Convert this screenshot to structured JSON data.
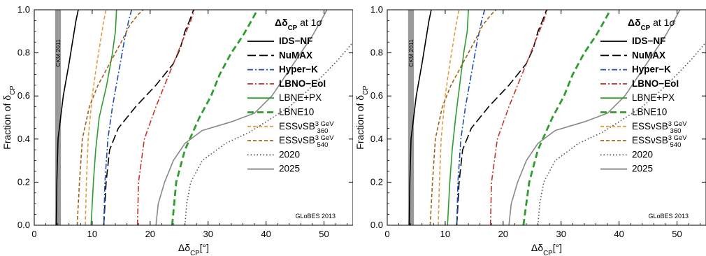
{
  "chart_data": [
    {
      "type": "line",
      "xlabel": "Δδ",
      "xlabel_sub": "CP",
      "xlabel_unit": "[°]",
      "ylabel": "Fraction of δ",
      "ylabel_sub": "CP",
      "xlim": [
        0,
        55
      ],
      "ylim": [
        0,
        1
      ],
      "x_ticks": [
        0,
        10,
        20,
        30,
        40,
        50
      ],
      "y_ticks": [
        "0.0",
        "0.2",
        "0.4",
        "0.6",
        "0.8",
        "1.0"
      ],
      "grid": false,
      "legend_title": "Δδ",
      "legend_title_sub": "CP",
      "legend_title_suffix": " at 1σ",
      "legend_position": "right",
      "band": {
        "label": "CKM 2011",
        "x": [
          3.6,
          4.6
        ],
        "color": "#999999"
      },
      "watermark": "GLoBES 2013",
      "series": [
        {
          "name": "IDS−NF",
          "color": "#000000",
          "dash": "solid",
          "bold": true,
          "points": [
            [
              3.8,
              0
            ],
            [
              3.9,
              0.2
            ],
            [
              4.1,
              0.4
            ],
            [
              5.0,
              0.6
            ],
            [
              6.0,
              0.75
            ],
            [
              6.6,
              0.85
            ],
            [
              7.2,
              0.95
            ],
            [
              7.6,
              1.0
            ]
          ]
        },
        {
          "name": "NuMAX",
          "color": "#000000",
          "dash": "longdash",
          "bold": true,
          "points": [
            [
              12.0,
              0
            ],
            [
              12.4,
              0.2
            ],
            [
              13.0,
              0.35
            ],
            [
              14.5,
              0.45
            ],
            [
              17.5,
              0.55
            ],
            [
              21.0,
              0.65
            ],
            [
              24.0,
              0.75
            ],
            [
              25.2,
              0.82
            ],
            [
              26.0,
              0.9
            ],
            [
              26.8,
              0.95
            ],
            [
              27.5,
              1.0
            ]
          ]
        },
        {
          "name": "Hyper−K",
          "color": "#1f4fb4",
          "dash": "dashdot",
          "bold": true,
          "points": [
            [
              12.0,
              0
            ],
            [
              12.2,
              0.2
            ],
            [
              12.7,
              0.4
            ],
            [
              13.5,
              0.55
            ],
            [
              14.5,
              0.7
            ],
            [
              15.5,
              0.85
            ],
            [
              16.3,
              0.95
            ],
            [
              16.8,
              1.0
            ]
          ]
        },
        {
          "name": "LBNO−EoI",
          "color": "#c0392b",
          "dash": "dashdot",
          "bold": true,
          "points": [
            [
              17.8,
              0
            ],
            [
              18.0,
              0.2
            ],
            [
              19.0,
              0.4
            ],
            [
              21.0,
              0.55
            ],
            [
              22.5,
              0.65
            ],
            [
              24.0,
              0.75
            ],
            [
              25.5,
              0.85
            ],
            [
              27.0,
              0.95
            ],
            [
              27.6,
              1.0
            ]
          ]
        },
        {
          "name": "LBNE+PX",
          "color": "#2e9e2e",
          "dash": "solid",
          "bold": false,
          "points": [
            [
              9.8,
              0
            ],
            [
              10.2,
              0.2
            ],
            [
              10.6,
              0.35
            ],
            [
              11.2,
              0.5
            ],
            [
              12.5,
              0.65
            ],
            [
              13.5,
              0.8
            ],
            [
              14.0,
              0.9
            ],
            [
              14.2,
              1.0
            ]
          ]
        },
        {
          "name": "LBNE10",
          "color": "#2e9e2e",
          "dash": "thickdash",
          "bold": false,
          "points": [
            [
              23.8,
              0
            ],
            [
              24.5,
              0.2
            ],
            [
              26.0,
              0.35
            ],
            [
              28.5,
              0.5
            ],
            [
              30.5,
              0.6
            ],
            [
              32.0,
              0.7
            ],
            [
              34.0,
              0.8
            ],
            [
              36.0,
              0.88
            ],
            [
              37.5,
              0.95
            ],
            [
              38.5,
              1.0
            ]
          ]
        },
        {
          "name": "ESSνSB",
          "name_sup": "3 GeV",
          "name_sub": "360",
          "color": "#e0a040",
          "dash": "dash",
          "bold": false,
          "points": [
            [
              8.8,
              0
            ],
            [
              9.0,
              0.2
            ],
            [
              9.3,
              0.4
            ],
            [
              10.0,
              0.6
            ],
            [
              10.8,
              0.75
            ],
            [
              11.4,
              0.85
            ],
            [
              12.0,
              0.95
            ],
            [
              12.4,
              1.0
            ]
          ]
        },
        {
          "name": "ESSνSB",
          "name_sup": "3 GeV",
          "name_sub": "540",
          "color": "#a0621c",
          "dash": "dash",
          "bold": false,
          "points": [
            [
              7.4,
              0
            ],
            [
              7.8,
              0.2
            ],
            [
              8.3,
              0.4
            ],
            [
              9.5,
              0.55
            ],
            [
              11.0,
              0.65
            ],
            [
              13.0,
              0.75
            ],
            [
              15.0,
              0.85
            ],
            [
              16.5,
              0.93
            ],
            [
              18.0,
              0.98
            ],
            [
              18.8,
              1.0
            ]
          ]
        },
        {
          "name": "2020",
          "color": "#555555",
          "dash": "dot",
          "bold": false,
          "points": [
            [
              26.0,
              0
            ],
            [
              26.3,
              0.1
            ],
            [
              27.0,
              0.2
            ],
            [
              29.0,
              0.3
            ],
            [
              33.0,
              0.38
            ],
            [
              37.0,
              0.43
            ],
            [
              40.0,
              0.48
            ],
            [
              44.0,
              0.55
            ],
            [
              47.0,
              0.62
            ],
            [
              50.0,
              0.7
            ],
            [
              52.5,
              0.77
            ],
            [
              55.0,
              0.85
            ]
          ]
        },
        {
          "name": "2025",
          "color": "#888888",
          "dash": "solid",
          "bold": false,
          "points": [
            [
              21.0,
              0
            ],
            [
              21.4,
              0.1
            ],
            [
              22.5,
              0.2
            ],
            [
              24.0,
              0.3
            ],
            [
              26.0,
              0.38
            ],
            [
              29.0,
              0.44
            ],
            [
              34.0,
              0.48
            ],
            [
              38.0,
              0.52
            ],
            [
              41.0,
              0.6
            ],
            [
              43.5,
              0.7
            ],
            [
              46.0,
              0.8
            ],
            [
              48.0,
              0.88
            ],
            [
              49.5,
              0.95
            ],
            [
              50.5,
              1.0
            ]
          ]
        }
      ]
    },
    {
      "type": "line",
      "xlabel": "Δδ",
      "xlabel_sub": "CP",
      "xlabel_unit": "[°]",
      "ylabel": "Fraction of δ",
      "ylabel_sub": "CP",
      "xlim": [
        0,
        55
      ],
      "ylim": [
        0,
        1
      ],
      "x_ticks": [
        0,
        10,
        20,
        30,
        40,
        50
      ],
      "y_ticks": [
        "0.0",
        "0.2",
        "0.4",
        "0.6",
        "0.8",
        "1.0"
      ],
      "grid": false,
      "legend_title": "Δδ",
      "legend_title_sub": "CP",
      "legend_title_suffix": " at 1σ",
      "legend_position": "right",
      "band": {
        "label": "CKM 2011",
        "x": [
          3.6,
          4.6
        ],
        "color": "#999999"
      },
      "watermark": "GLoBES 2013",
      "series": [
        {
          "name": "IDS−NF",
          "color": "#000000",
          "dash": "solid",
          "bold": true,
          "points": [
            [
              3.8,
              0
            ],
            [
              3.9,
              0.2
            ],
            [
              4.1,
              0.4
            ],
            [
              5.0,
              0.6
            ],
            [
              6.0,
              0.75
            ],
            [
              6.6,
              0.85
            ],
            [
              7.2,
              0.95
            ],
            [
              7.6,
              1.0
            ]
          ]
        },
        {
          "name": "NuMAX",
          "color": "#000000",
          "dash": "longdash",
          "bold": true,
          "points": [
            [
              12.0,
              0
            ],
            [
              12.4,
              0.2
            ],
            [
              13.0,
              0.35
            ],
            [
              14.5,
              0.45
            ],
            [
              17.5,
              0.55
            ],
            [
              21.0,
              0.65
            ],
            [
              24.0,
              0.75
            ],
            [
              25.2,
              0.82
            ],
            [
              26.0,
              0.9
            ],
            [
              26.8,
              0.95
            ],
            [
              27.5,
              1.0
            ]
          ]
        },
        {
          "name": "Hyper−K",
          "color": "#1f4fb4",
          "dash": "dashdot",
          "bold": true,
          "points": [
            [
              12.0,
              0
            ],
            [
              12.2,
              0.2
            ],
            [
              12.7,
              0.4
            ],
            [
              13.5,
              0.55
            ],
            [
              14.5,
              0.7
            ],
            [
              15.5,
              0.85
            ],
            [
              16.3,
              0.95
            ],
            [
              16.8,
              1.0
            ]
          ]
        },
        {
          "name": "LBNO−EoI",
          "color": "#c0392b",
          "dash": "dashdot",
          "bold": true,
          "points": [
            [
              17.8,
              0
            ],
            [
              18.0,
              0.2
            ],
            [
              19.0,
              0.4
            ],
            [
              21.0,
              0.55
            ],
            [
              22.5,
              0.65
            ],
            [
              24.0,
              0.75
            ],
            [
              25.5,
              0.85
            ],
            [
              27.0,
              0.95
            ],
            [
              27.6,
              1.0
            ]
          ]
        },
        {
          "name": "LBNE+PX",
          "color": "#2e9e2e",
          "dash": "solid",
          "bold": false,
          "points": [
            [
              10.4,
              0
            ],
            [
              10.8,
              0.2
            ],
            [
              11.2,
              0.35
            ],
            [
              11.8,
              0.5
            ],
            [
              12.5,
              0.65
            ],
            [
              13.2,
              0.8
            ],
            [
              13.8,
              0.9
            ],
            [
              14.0,
              1.0
            ]
          ]
        },
        {
          "name": "LBNE10",
          "color": "#2e9e2e",
          "dash": "thickdash",
          "bold": false,
          "points": [
            [
              23.5,
              0
            ],
            [
              24.5,
              0.2
            ],
            [
              26.0,
              0.35
            ],
            [
              28.5,
              0.5
            ],
            [
              30.5,
              0.6
            ],
            [
              32.0,
              0.7
            ],
            [
              34.0,
              0.8
            ],
            [
              36.0,
              0.88
            ],
            [
              37.5,
              0.95
            ],
            [
              38.5,
              1.0
            ]
          ]
        },
        {
          "name": "ESSνSB",
          "name_sup": "3 GeV",
          "name_sub": "360",
          "color": "#e0a040",
          "dash": "dash",
          "bold": false,
          "points": [
            [
              8.8,
              0
            ],
            [
              9.0,
              0.2
            ],
            [
              9.3,
              0.4
            ],
            [
              10.0,
              0.6
            ],
            [
              10.8,
              0.75
            ],
            [
              11.4,
              0.85
            ],
            [
              12.0,
              0.95
            ],
            [
              12.4,
              1.0
            ]
          ]
        },
        {
          "name": "ESSνSB",
          "name_sup": "3 GeV",
          "name_sub": "540",
          "color": "#a0621c",
          "dash": "dash",
          "bold": false,
          "points": [
            [
              7.4,
              0
            ],
            [
              7.8,
              0.2
            ],
            [
              8.3,
              0.4
            ],
            [
              9.5,
              0.55
            ],
            [
              11.0,
              0.65
            ],
            [
              13.0,
              0.75
            ],
            [
              15.0,
              0.85
            ],
            [
              16.5,
              0.93
            ],
            [
              18.0,
              0.98
            ],
            [
              18.8,
              1.0
            ]
          ]
        },
        {
          "name": "2020",
          "color": "#555555",
          "dash": "dot",
          "bold": false,
          "points": [
            [
              26.0,
              0
            ],
            [
              26.3,
              0.1
            ],
            [
              27.0,
              0.2
            ],
            [
              29.0,
              0.3
            ],
            [
              33.0,
              0.38
            ],
            [
              37.0,
              0.43
            ],
            [
              40.0,
              0.48
            ],
            [
              44.0,
              0.55
            ],
            [
              47.0,
              0.62
            ],
            [
              50.0,
              0.7
            ],
            [
              52.5,
              0.77
            ],
            [
              55.0,
              0.85
            ]
          ]
        },
        {
          "name": "2025",
          "color": "#888888",
          "dash": "solid",
          "bold": false,
          "points": [
            [
              21.0,
              0
            ],
            [
              21.4,
              0.1
            ],
            [
              22.5,
              0.2
            ],
            [
              24.0,
              0.3
            ],
            [
              26.0,
              0.38
            ],
            [
              29.0,
              0.44
            ],
            [
              34.0,
              0.48
            ],
            [
              38.0,
              0.52
            ],
            [
              41.0,
              0.6
            ],
            [
              43.5,
              0.7
            ],
            [
              46.0,
              0.8
            ],
            [
              48.0,
              0.88
            ],
            [
              49.5,
              0.95
            ],
            [
              50.5,
              1.0
            ]
          ]
        }
      ]
    }
  ]
}
